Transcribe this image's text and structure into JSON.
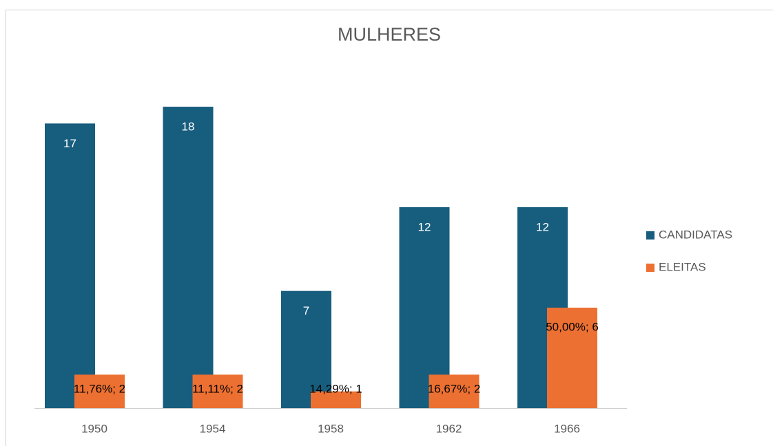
{
  "chart_data": {
    "type": "bar",
    "title": "MULHERES",
    "categories": [
      "1950",
      "1954",
      "1958",
      "1962",
      "1966"
    ],
    "series": [
      {
        "name": "CANDIDATAS",
        "color": "#175d7e",
        "values": [
          17,
          18,
          7,
          12,
          12
        ]
      },
      {
        "name": "ELEITAS",
        "color": "#ec7031",
        "values": [
          2,
          2,
          1,
          2,
          6
        ],
        "value_labels": [
          "11,76%; 2",
          "11,11%; 2",
          "14,29%; 1",
          "16,67%; 2",
          "50,00%; 6"
        ]
      }
    ],
    "legend": "right"
  }
}
